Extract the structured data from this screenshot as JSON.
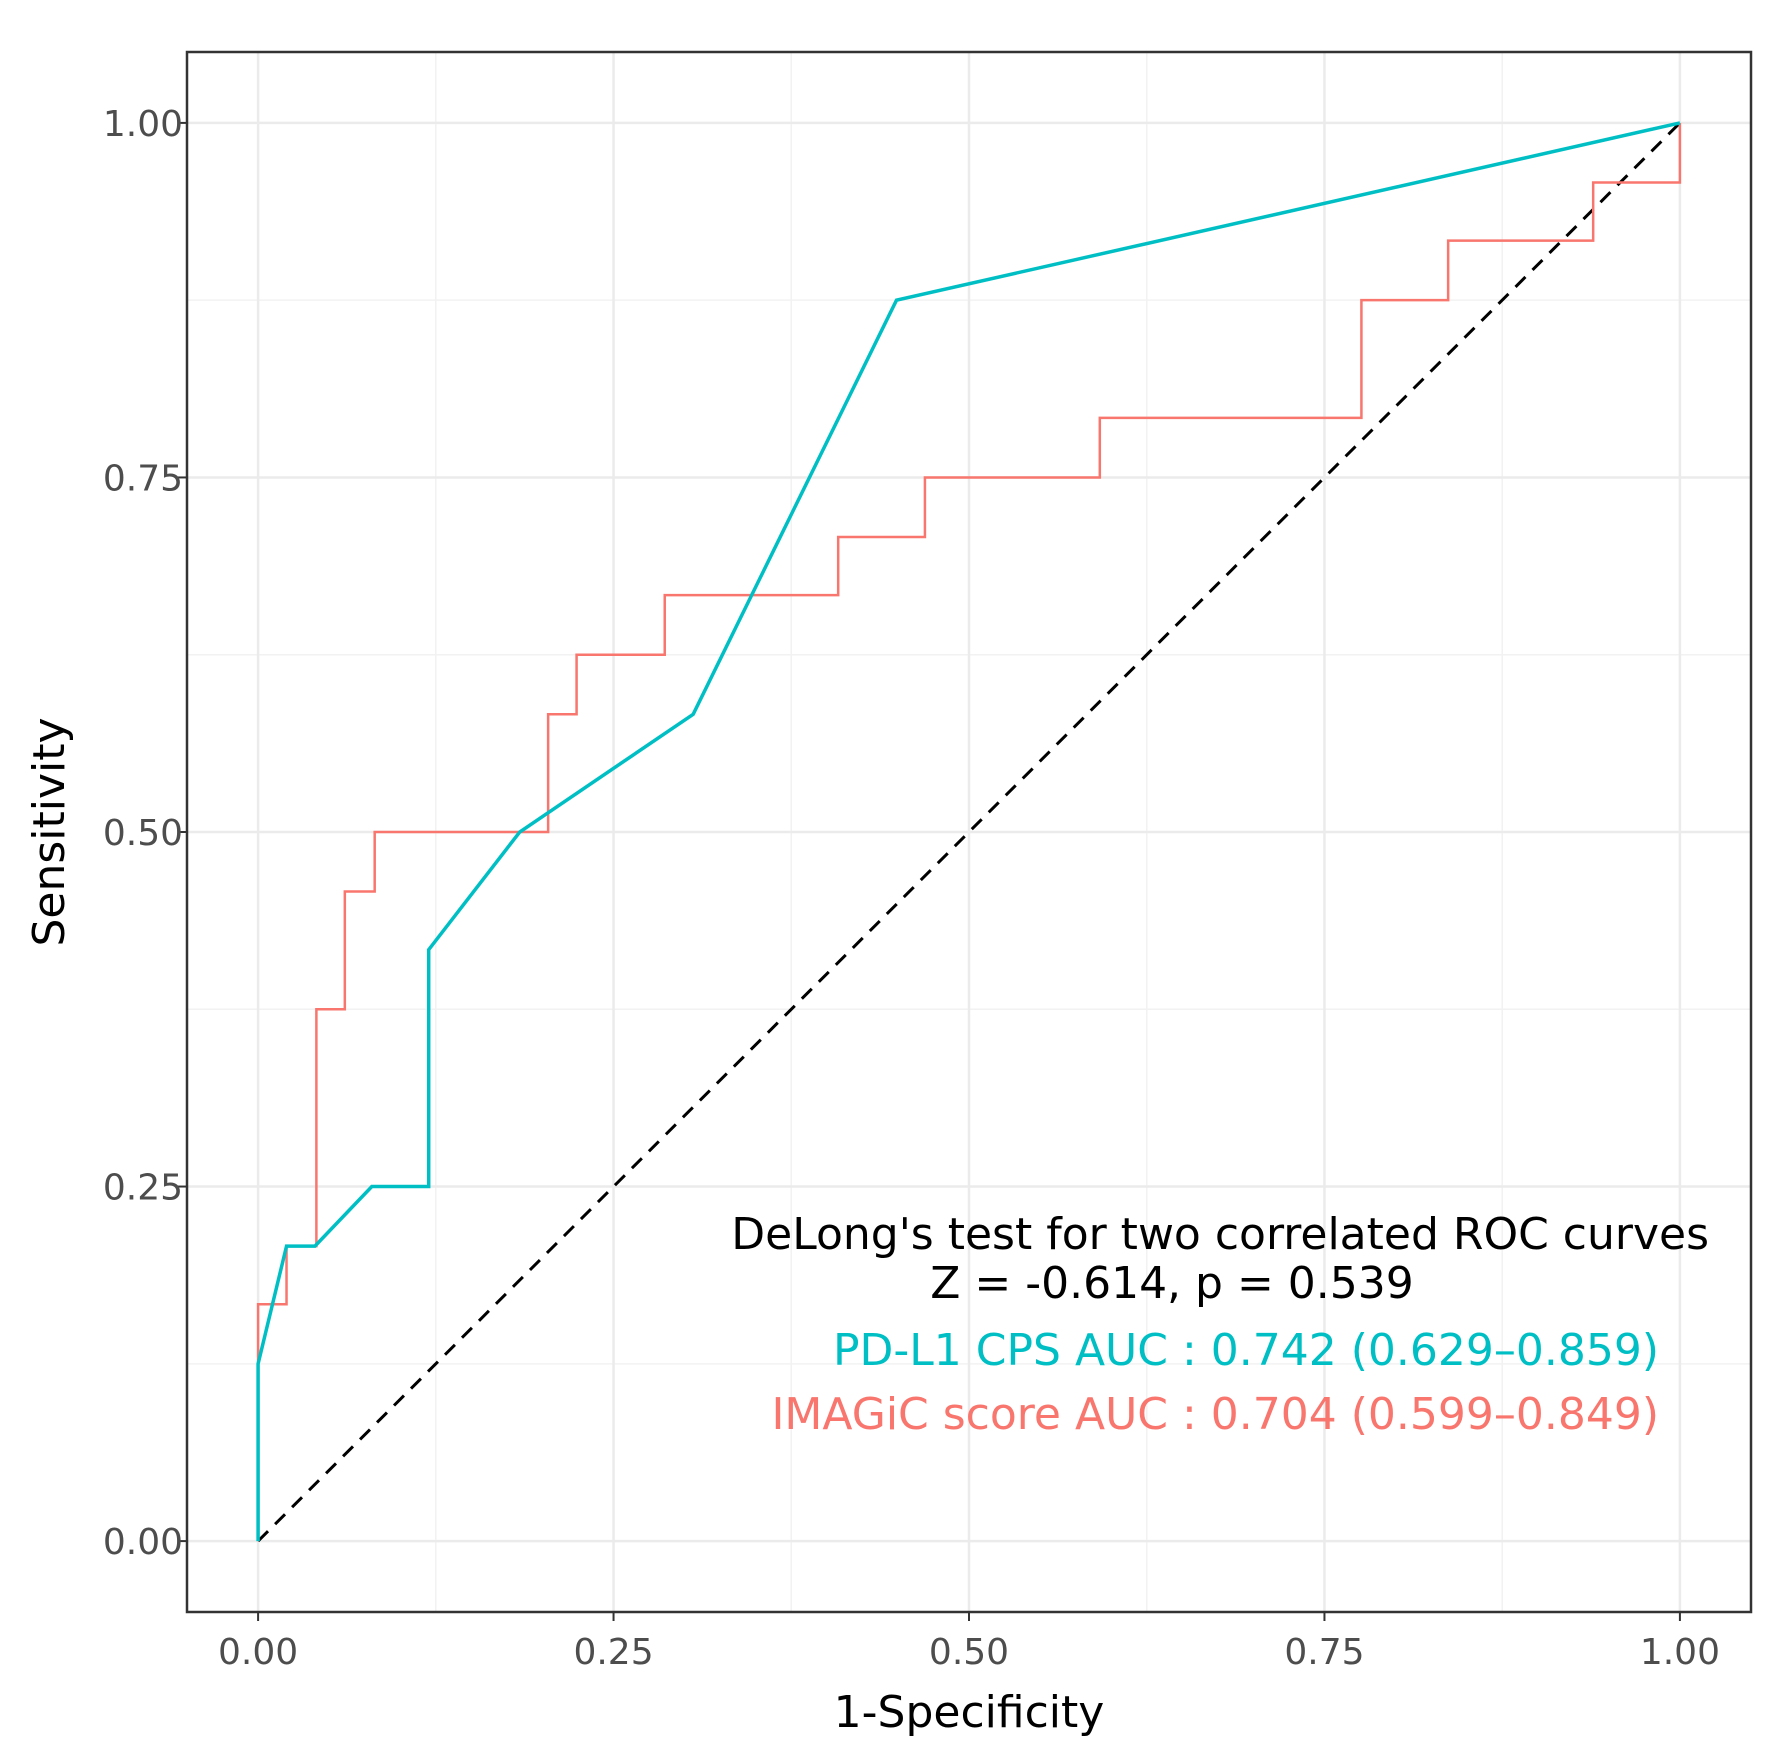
{
  "chart_data": {
    "type": "line",
    "xlabel": "1-Specificity",
    "ylabel": "Sensitivity",
    "xlim": [
      -0.05,
      1.05
    ],
    "ylim": [
      -0.05,
      1.05
    ],
    "xticks": [
      0.0,
      0.25,
      0.5,
      0.75,
      1.0
    ],
    "yticks": [
      0.0,
      0.25,
      0.5,
      0.75,
      1.0
    ],
    "xtick_labels": [
      "0.00",
      "0.25",
      "0.50",
      "0.75",
      "1.00"
    ],
    "ytick_labels": [
      "0.00",
      "0.25",
      "0.50",
      "0.75",
      "1.00"
    ],
    "grid": true,
    "reference_line": {
      "x": [
        0,
        1
      ],
      "y": [
        0,
        1
      ],
      "style": "dashed",
      "color": "#000000"
    },
    "series": [
      {
        "name": "PD-L1 CPS",
        "color": "#00bfc4",
        "x": [
          0.0,
          0.0,
          0.02,
          0.04,
          0.08,
          0.12,
          0.12,
          0.184,
          0.306,
          0.449,
          1.0
        ],
        "y": [
          0.0,
          0.125,
          0.208,
          0.208,
          0.25,
          0.25,
          0.417,
          0.5,
          0.583,
          0.875,
          1.0
        ]
      },
      {
        "name": "IMAGiC score",
        "color": "#f8766d",
        "x": [
          0.0,
          0.0,
          0.02,
          0.02,
          0.041,
          0.041,
          0.061,
          0.061,
          0.082,
          0.082,
          0.204,
          0.204,
          0.224,
          0.224,
          0.286,
          0.286,
          0.408,
          0.408,
          0.469,
          0.469,
          0.592,
          0.592,
          0.776,
          0.776,
          0.837,
          0.837,
          0.939,
          0.939,
          1.0,
          1.0
        ],
        "y": [
          0.0,
          0.167,
          0.167,
          0.208,
          0.208,
          0.375,
          0.375,
          0.458,
          0.458,
          0.5,
          0.5,
          0.583,
          0.583,
          0.625,
          0.625,
          0.667,
          0.667,
          0.708,
          0.708,
          0.75,
          0.75,
          0.792,
          0.792,
          0.875,
          0.875,
          0.917,
          0.917,
          0.958,
          0.958,
          1.0
        ]
      }
    ],
    "annotations": {
      "test_title": "DeLong's test for two correlated ROC curves",
      "test_stats": "Z = -0.614, p = 0.539",
      "auc_pdl1": "PD-L1 CPS AUC : 0.742 (0.629–0.859)",
      "auc_imagic": "IMAGiC score AUC : 0.704 (0.599–0.849)"
    }
  }
}
